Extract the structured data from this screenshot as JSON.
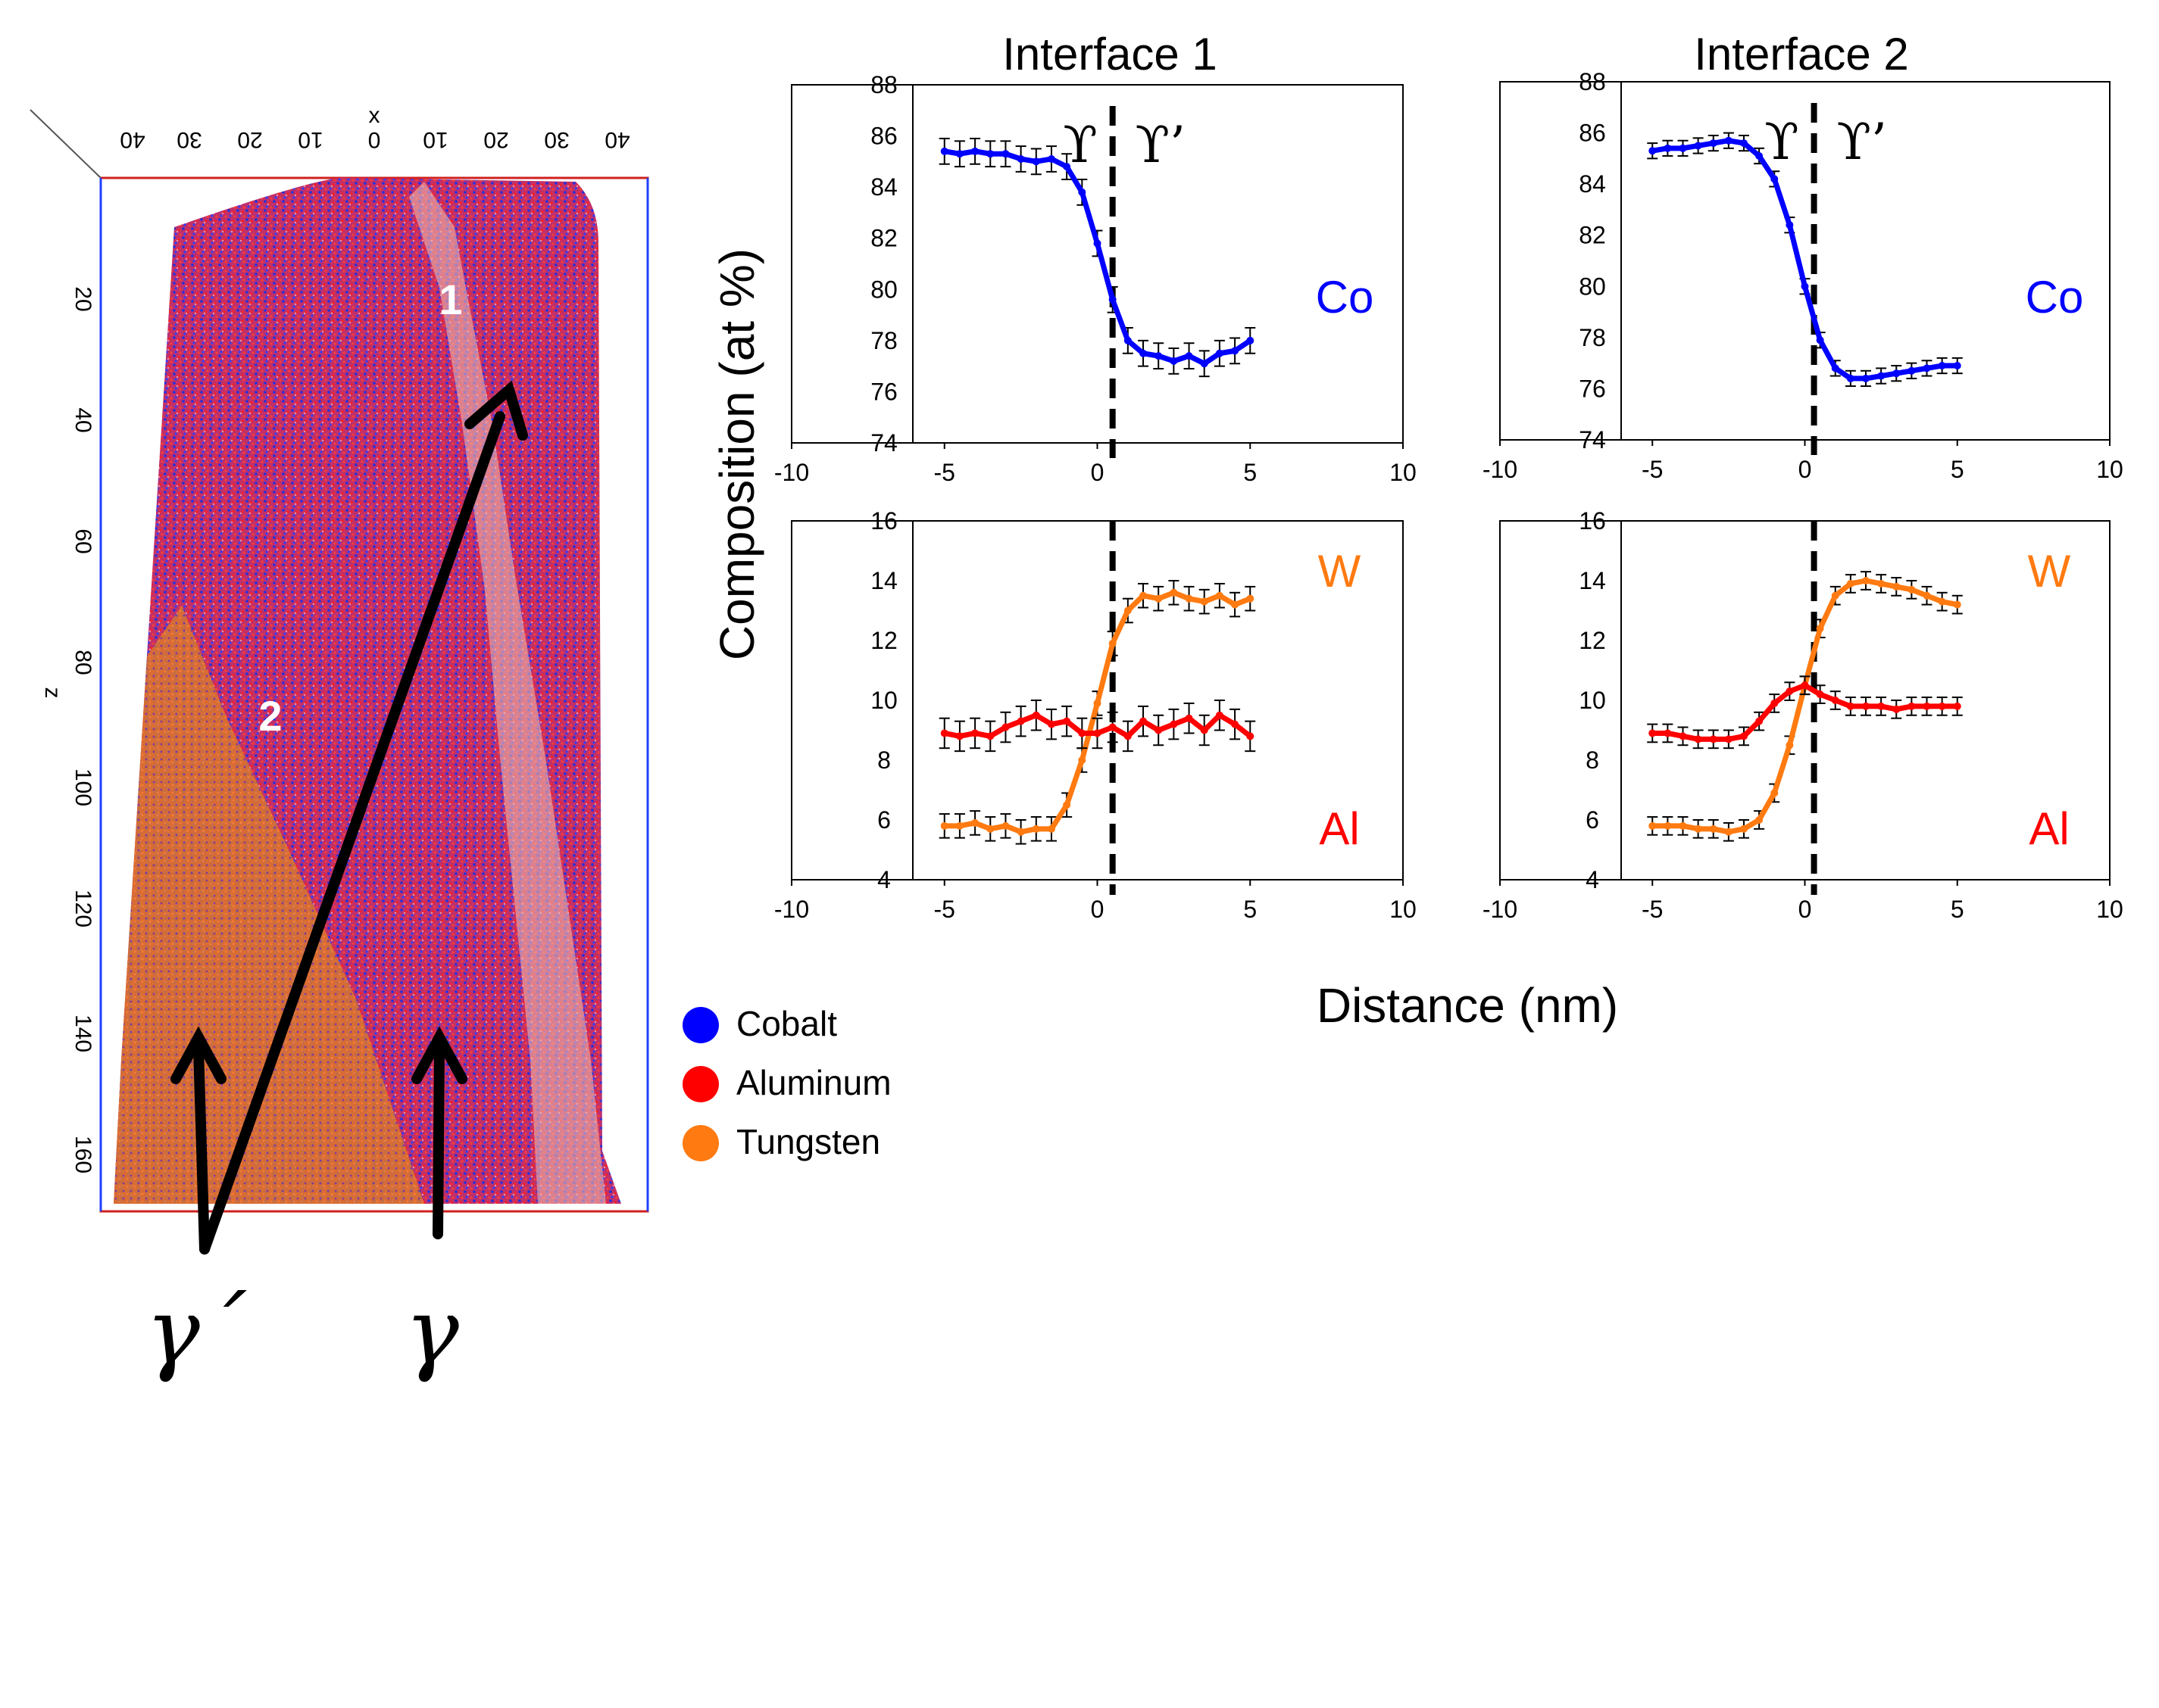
{
  "reconstruction": {
    "x_axis_label": "x",
    "x_ticks": [
      "40",
      "30",
      "20",
      "10",
      "0",
      "10",
      "20",
      "30",
      "40"
    ],
    "z_axis_label": "z",
    "z_ticks": [
      "20",
      "40",
      "60",
      "80",
      "100",
      "120",
      "140",
      "160"
    ],
    "interface_labels": [
      "1",
      "2"
    ],
    "phase_labels": [
      "γ´",
      "γ"
    ]
  },
  "legend": {
    "entries": [
      {
        "label": "Cobalt",
        "color": "#0000ff"
      },
      {
        "label": "Aluminum",
        "color": "#ff0000"
      },
      {
        "label": "Tungsten",
        "color": "#ff7a10"
      }
    ]
  },
  "ylabel": "Composition (at %)",
  "xlabel": "Distance (nm)",
  "phase_markers": {
    "left": "ϒ",
    "right": "ϒ’"
  },
  "colors": {
    "Co": "#0000ff",
    "Al": "#ff0000",
    "W": "#ff7a10",
    "error": "#000000"
  },
  "chart_data": [
    {
      "type": "line",
      "title": "Interface 1",
      "panel": "Co",
      "xlim": [
        -10,
        10
      ],
      "ylim": [
        74,
        88
      ],
      "xticks": [
        -10,
        -5,
        0,
        5,
        10
      ],
      "yticks": [
        74,
        76,
        78,
        80,
        82,
        84,
        86,
        88
      ],
      "interface_x": 0.5,
      "series": [
        {
          "name": "Co",
          "x": [
            -5,
            -4.5,
            -4,
            -3.5,
            -3,
            -2.5,
            -2,
            -1.5,
            -1,
            -0.5,
            0,
            0.5,
            1,
            1.5,
            2,
            2.5,
            3,
            3.5,
            4,
            4.5,
            5
          ],
          "y": [
            85.4,
            85.3,
            85.4,
            85.3,
            85.3,
            85.1,
            85.0,
            85.1,
            84.8,
            83.8,
            81.8,
            79.6,
            78.0,
            77.5,
            77.4,
            77.2,
            77.4,
            77.1,
            77.5,
            77.6,
            78.0
          ],
          "err": 0.5
        }
      ]
    },
    {
      "type": "line",
      "title": "Interface 2",
      "panel": "Co",
      "xlim": [
        -10,
        10
      ],
      "ylim": [
        74,
        88
      ],
      "xticks": [
        -10,
        -5,
        0,
        5,
        10
      ],
      "yticks": [
        74,
        76,
        78,
        80,
        82,
        84,
        86,
        88
      ],
      "interface_x": 0.3,
      "series": [
        {
          "name": "Co",
          "x": [
            -5,
            -4.5,
            -4,
            -3.5,
            -3,
            -2.5,
            -2,
            -1.5,
            -1,
            -0.5,
            0,
            0.5,
            1,
            1.5,
            2,
            2.5,
            3,
            3.5,
            4,
            4.5,
            5
          ],
          "y": [
            85.3,
            85.4,
            85.4,
            85.5,
            85.6,
            85.7,
            85.6,
            85.1,
            84.2,
            82.4,
            80.0,
            77.9,
            76.8,
            76.4,
            76.4,
            76.5,
            76.6,
            76.7,
            76.8,
            76.9,
            76.9
          ],
          "err": 0.3
        }
      ]
    },
    {
      "type": "line",
      "panel": "W-Al",
      "xlim": [
        -10,
        10
      ],
      "ylim": [
        4,
        16
      ],
      "xticks": [
        -10,
        -5,
        0,
        5,
        10
      ],
      "yticks": [
        4,
        6,
        8,
        10,
        12,
        14,
        16
      ],
      "interface_x": 0.5,
      "series": [
        {
          "name": "W",
          "x": [
            -5,
            -4.5,
            -4,
            -3.5,
            -3,
            -2.5,
            -2,
            -1.5,
            -1,
            -0.5,
            0,
            0.5,
            1,
            1.5,
            2,
            2.5,
            3,
            3.5,
            4,
            4.5,
            5
          ],
          "y": [
            5.8,
            5.8,
            5.9,
            5.7,
            5.8,
            5.6,
            5.7,
            5.7,
            6.5,
            8.0,
            9.9,
            11.9,
            13.0,
            13.5,
            13.4,
            13.6,
            13.4,
            13.3,
            13.5,
            13.2,
            13.4
          ],
          "err": 0.4
        },
        {
          "name": "Al",
          "x": [
            -5,
            -4.5,
            -4,
            -3.5,
            -3,
            -2.5,
            -2,
            -1.5,
            -1,
            -0.5,
            0,
            0.5,
            1,
            1.5,
            2,
            2.5,
            3,
            3.5,
            4,
            4.5,
            5
          ],
          "y": [
            8.9,
            8.8,
            8.9,
            8.8,
            9.1,
            9.3,
            9.5,
            9.2,
            9.3,
            8.9,
            8.9,
            9.1,
            8.8,
            9.3,
            9.0,
            9.2,
            9.4,
            9.0,
            9.5,
            9.2,
            8.8
          ],
          "err": 0.5
        }
      ]
    },
    {
      "type": "line",
      "panel": "W-Al",
      "xlim": [
        -10,
        10
      ],
      "ylim": [
        4,
        16
      ],
      "xticks": [
        -10,
        -5,
        0,
        5,
        10
      ],
      "yticks": [
        4,
        6,
        8,
        10,
        12,
        14,
        16
      ],
      "interface_x": 0.3,
      "series": [
        {
          "name": "W",
          "x": [
            -5,
            -4.5,
            -4,
            -3.5,
            -3,
            -2.5,
            -2,
            -1.5,
            -1,
            -0.5,
            0,
            0.5,
            1,
            1.5,
            2,
            2.5,
            3,
            3.5,
            4,
            4.5,
            5
          ],
          "y": [
            5.8,
            5.8,
            5.8,
            5.7,
            5.7,
            5.6,
            5.7,
            6.0,
            6.9,
            8.5,
            10.5,
            12.4,
            13.5,
            13.9,
            14.0,
            13.9,
            13.8,
            13.7,
            13.5,
            13.3,
            13.2
          ],
          "err": 0.3
        },
        {
          "name": "Al",
          "x": [
            -5,
            -4.5,
            -4,
            -3.5,
            -3,
            -2.5,
            -2,
            -1.5,
            -1,
            -0.5,
            0,
            0.5,
            1,
            1.5,
            2,
            2.5,
            3,
            3.5,
            4,
            4.5,
            5
          ],
          "y": [
            8.9,
            8.9,
            8.8,
            8.7,
            8.7,
            8.7,
            8.8,
            9.3,
            9.9,
            10.3,
            10.5,
            10.2,
            10.0,
            9.8,
            9.8,
            9.8,
            9.7,
            9.8,
            9.8,
            9.8,
            9.8
          ],
          "err": 0.3
        }
      ]
    }
  ]
}
